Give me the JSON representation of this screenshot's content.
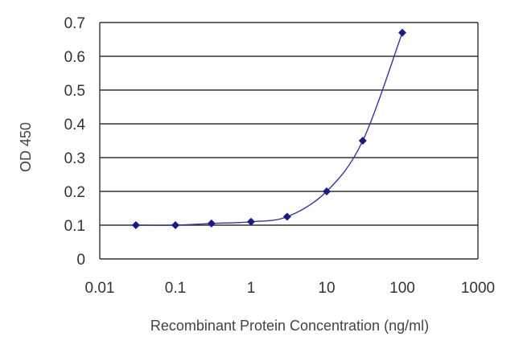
{
  "chart_data": {
    "type": "line",
    "xlabel": "Recombinant Protein Concentration (ng/ml)",
    "ylabel": "OD 450",
    "x_scale": "log",
    "xlim": [
      0.01,
      1000
    ],
    "ylim": [
      0,
      0.7
    ],
    "x_ticks": [
      "0.01",
      "0.1",
      "1",
      "10",
      "100",
      "1000"
    ],
    "y_ticks": [
      "0",
      "0.1",
      "0.2",
      "0.3",
      "0.4",
      "0.5",
      "0.6",
      "0.7"
    ],
    "grid": true,
    "series": [
      {
        "x": [
          0.03,
          0.1,
          0.3,
          1,
          3,
          10,
          30,
          100
        ],
        "y": [
          0.1,
          0.1,
          0.105,
          0.11,
          0.125,
          0.2,
          0.35,
          0.67
        ]
      }
    ],
    "colors": {
      "line": "#3333aa",
      "marker": "#1a1a8c",
      "grid": "#333333"
    }
  }
}
